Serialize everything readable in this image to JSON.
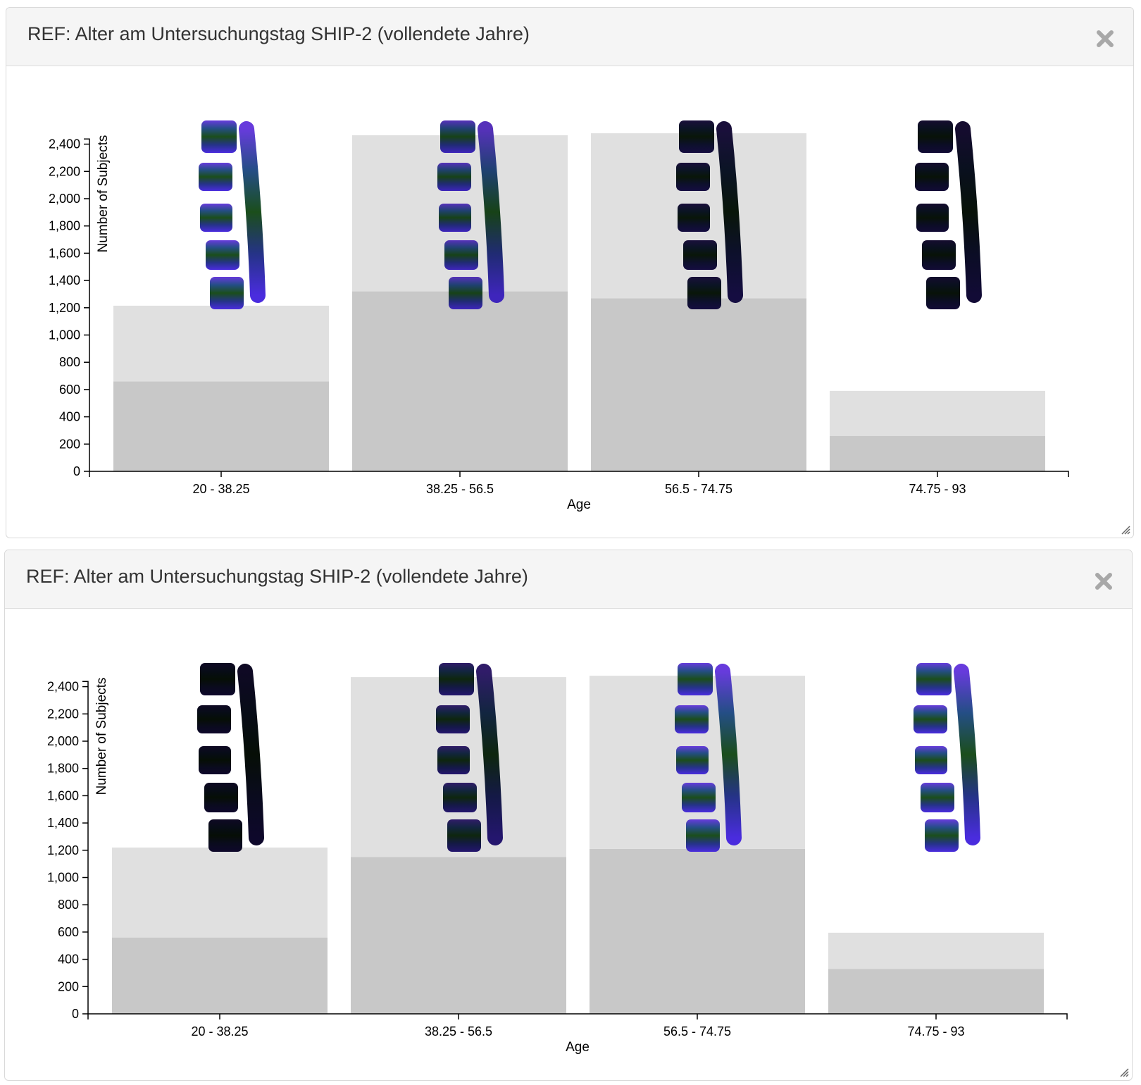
{
  "panels": [
    {
      "title": "REF: Alter am Untersuchungstag SHIP-2 (vollendete Jahre)",
      "close_icon": "close-icon",
      "chart_data": {
        "type": "bar",
        "stacked": true,
        "categories": [
          "20 - 38.25",
          "38.25 - 56.5",
          "56.5 - 74.75",
          "74.75 - 93"
        ],
        "series": [
          {
            "values": [
              660,
              1320,
              1270,
              260
            ],
            "color": "#c8c8c8"
          },
          {
            "values": [
              555,
              1145,
              1210,
              330
            ],
            "color": "#e0e0e0"
          }
        ],
        "xlabel": "Age",
        "ylabel": "Number of Subjects",
        "ylim": [
          0,
          2500
        ],
        "yticks": [
          0,
          200,
          400,
          600,
          800,
          1000,
          1200,
          1400,
          1600,
          1800,
          2000,
          2200,
          2400
        ],
        "ytick_labels": [
          "0",
          "200",
          "400",
          "600",
          "800",
          "1,000",
          "1,200",
          "1,400",
          "1,600",
          "1,800",
          "2,000",
          "2,200",
          "2,400"
        ],
        "spine_shades": [
          0.85,
          0.7,
          0.15,
          0.1
        ]
      }
    },
    {
      "title": "REF: Alter am Untersuchungstag SHIP-2 (vollendete Jahre)",
      "close_icon": "close-icon",
      "chart_data": {
        "type": "bar",
        "stacked": true,
        "categories": [
          "20 - 38.25",
          "38.25 - 56.5",
          "56.5 - 74.75",
          "74.75 - 93"
        ],
        "series": [
          {
            "values": [
              560,
              1150,
              1210,
              330
            ],
            "color": "#c8c8c8"
          },
          {
            "values": [
              660,
              1320,
              1270,
              265
            ],
            "color": "#e0e0e0"
          }
        ],
        "xlabel": "Age",
        "ylabel": "Number of Subjects",
        "ylim": [
          0,
          2500
        ],
        "yticks": [
          0,
          200,
          400,
          600,
          800,
          1000,
          1200,
          1400,
          1600,
          1800,
          2000,
          2200,
          2400
        ],
        "ytick_labels": [
          "0",
          "200",
          "400",
          "600",
          "800",
          "1,000",
          "1,200",
          "1,400",
          "1,600",
          "1,800",
          "2,000",
          "2,200",
          "2,400"
        ],
        "spine_shades": [
          0.05,
          0.35,
          0.85,
          0.85
        ]
      }
    }
  ]
}
